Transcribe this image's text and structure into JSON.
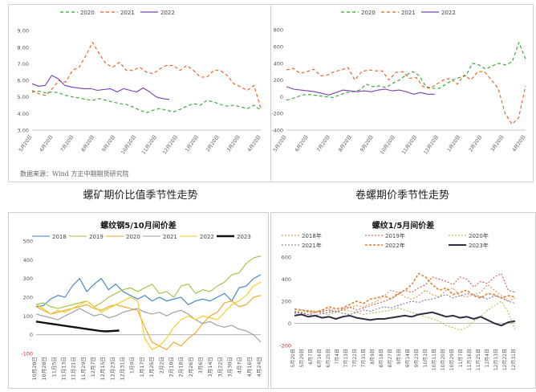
{
  "chart_data": [
    {
      "type": "line",
      "caption": "螺矿期价比值季节性走势",
      "source": "数据来源：Wind 方正中期期货研究院",
      "series": [
        {
          "name": "2020",
          "color": "#2aa62a",
          "dash": "4,3",
          "values": [
            5.3,
            5.35,
            5.25,
            5.3,
            5.25,
            5.1,
            5.0,
            4.95,
            4.85,
            4.8,
            4.9,
            4.8,
            4.7,
            4.6,
            4.55,
            4.4,
            4.2,
            4.05,
            4.2,
            4.3,
            4.2,
            4.1,
            4.25,
            4.45,
            4.6,
            4.5,
            4.8,
            4.7,
            4.55,
            4.45,
            4.5,
            4.4,
            4.3,
            4.5,
            4.2
          ]
        },
        {
          "name": "2021",
          "color": "#f05a1a",
          "dash": "4,3",
          "values": [
            5.4,
            5.2,
            5.1,
            5.5,
            6.0,
            5.9,
            6.6,
            6.8,
            7.5,
            8.3,
            7.6,
            7.0,
            6.8,
            7.1,
            6.6,
            6.6,
            6.8,
            6.5,
            6.4,
            6.7,
            6.9,
            6.9,
            6.6,
            6.9,
            6.6,
            6.2,
            6.2,
            6.6,
            6.6,
            6.3,
            5.8,
            5.6,
            5.4,
            5.7,
            4.3
          ]
        },
        {
          "name": "2022",
          "color": "#7a3fb0",
          "dash": "",
          "values": [
            5.8,
            5.65,
            5.7,
            6.3,
            6.1,
            5.7,
            5.6,
            5.55,
            5.5,
            5.5,
            5.4,
            5.45,
            5.5,
            5.3,
            5.5,
            5.4,
            5.3,
            5.55,
            5.3,
            5.0,
            4.9,
            4.85
          ]
        }
      ],
      "x_ticks": [
        "5月20日",
        "6月20日",
        "7月20日",
        "8月20日",
        "9月20日",
        "10月20日",
        "11月20日",
        "12月20日",
        "1月20日",
        "2月20日",
        "3月20日",
        "4月20日"
      ],
      "y_ticks": [
        "3.00",
        "4.00",
        "5.00",
        "6.00",
        "7.00",
        "8.00",
        "9.00"
      ],
      "ylim": [
        3,
        9.3
      ]
    },
    {
      "type": "line",
      "caption": "卷螺期价季节性走势",
      "series": [
        {
          "name": "2020",
          "color": "#2aa62a",
          "dash": "4,3",
          "values": [
            -40,
            -20,
            10,
            30,
            20,
            10,
            0,
            -10,
            20,
            50,
            60,
            80,
            150,
            120,
            130,
            110,
            160,
            200,
            260,
            300,
            250,
            120,
            100,
            100,
            150,
            200,
            230,
            250,
            400,
            380,
            330,
            370,
            400,
            380,
            420,
            650,
            450
          ]
        },
        {
          "name": "2021",
          "color": "#f05a1a",
          "dash": "4,3",
          "values": [
            320,
            340,
            280,
            300,
            330,
            250,
            260,
            300,
            320,
            350,
            200,
            300,
            320,
            310,
            310,
            200,
            290,
            300,
            220,
            230,
            120,
            100,
            150,
            200,
            220,
            150,
            260,
            200,
            300,
            300,
            200,
            100,
            -200,
            -330,
            -250,
            130
          ]
        },
        {
          "name": "2022",
          "color": "#7a3fb0",
          "dash": "",
          "values": [
            120,
            90,
            80,
            70,
            60,
            40,
            20,
            50,
            80,
            70,
            60,
            70,
            60,
            80,
            90,
            70,
            80,
            60,
            30,
            50,
            30,
            30
          ]
        }
      ],
      "x_ticks": [
        "5月20日",
        "6月20日",
        "7月20日",
        "8月20日",
        "9月20日",
        "10月20日",
        "11月20日",
        "12月20日",
        "1月20日",
        "2月20日",
        "3月20日",
        "4月20日"
      ],
      "y_ticks": [
        "-400",
        "-200",
        "0",
        "200",
        "400",
        "600",
        "800"
      ],
      "ylim": [
        -400,
        850
      ]
    },
    {
      "type": "line",
      "title": "螺纹钢5/10月间价差",
      "series": [
        {
          "name": "2018",
          "color": "#3a7fcb",
          "dash": "",
          "width": 1.1,
          "values": [
            150,
            155,
            190,
            210,
            200,
            260,
            300,
            230,
            270,
            300,
            240,
            270,
            230,
            210,
            190,
            210,
            180,
            200,
            180,
            190,
            200,
            160,
            180,
            190,
            180,
            200,
            220,
            180,
            250,
            260,
            300,
            320
          ]
        },
        {
          "name": "2019",
          "color": "#9ac33c",
          "dash": "",
          "width": 1.1,
          "values": [
            160,
            170,
            150,
            140,
            150,
            160,
            170,
            180,
            150,
            170,
            200,
            220,
            240,
            250,
            230,
            250,
            270,
            220,
            230,
            200,
            260,
            270,
            220,
            240,
            230,
            260,
            280,
            320,
            330,
            380,
            410,
            420
          ]
        },
        {
          "name": "2020",
          "color": "#f5a11c",
          "dash": "",
          "width": 1.1,
          "values": [
            150,
            130,
            110,
            120,
            130,
            140,
            150,
            160,
            140,
            130,
            150,
            160,
            150,
            140,
            130,
            40,
            -40,
            -60,
            -80,
            -40,
            -60,
            -20,
            10,
            60,
            100,
            120,
            170,
            180,
            150,
            160,
            200,
            210
          ]
        },
        {
          "name": "2021",
          "color": "#9b9b9b",
          "dash": "",
          "width": 1.1,
          "values": [
            110,
            100,
            90,
            80,
            100,
            120,
            140,
            120,
            100,
            110,
            90,
            100,
            120,
            130,
            140,
            120,
            110,
            120,
            100,
            120,
            130,
            110,
            80,
            60,
            70,
            50,
            40,
            50,
            30,
            20,
            0,
            -40
          ]
        },
        {
          "name": "2022",
          "color": "#f2cc1a",
          "dash": "",
          "width": 1.1,
          "values": [
            160,
            140,
            110,
            130,
            120,
            140,
            160,
            180,
            150,
            120,
            140,
            160,
            180,
            200,
            180,
            -20,
            -80,
            -60,
            -20,
            40,
            80,
            100,
            80,
            100,
            90,
            80,
            120,
            160,
            180,
            210,
            260,
            280
          ]
        },
        {
          "name": "2023",
          "color": "#111111",
          "dash": "",
          "width": 2.4,
          "values": [
            70,
            65,
            60,
            55,
            50,
            45,
            40,
            35,
            30,
            25,
            20,
            18,
            20,
            22
          ]
        }
      ],
      "x_ticks": [
        "10月20日",
        "10月28日",
        "11月5日",
        "11月13日",
        "11月21日",
        "11月29日",
        "12月7日",
        "12月15日",
        "12月23日",
        "12月31日",
        "1月9日",
        "1月17日",
        "1月25日",
        "2月2日",
        "2月10日",
        "2月18日",
        "2月26日",
        "3月6日",
        "3月14日",
        "3月22日",
        "3月30日",
        "4月7日",
        "4月16日",
        "4月24日"
      ],
      "y_ticks": [
        "-100",
        "0",
        "100",
        "200",
        "300",
        "400",
        "500"
      ],
      "ylim": [
        -100,
        500
      ]
    },
    {
      "type": "line",
      "title": "螺纹1/5月间价差",
      "series": [
        {
          "name": "2018年",
          "color": "#d98a3d",
          "dash": "2,2",
          "width": 1.0,
          "values": [
            110,
            100,
            120,
            110,
            100,
            130,
            110,
            120,
            140,
            160,
            150,
            180,
            200,
            250,
            300,
            280,
            240,
            220,
            250,
            300,
            260,
            240,
            300,
            320,
            250,
            240,
            260,
            280,
            350,
            300,
            250,
            200,
            230
          ]
        },
        {
          "name": "2019年",
          "color": "#e0453a",
          "dash": "2,2",
          "width": 1.0,
          "values": [
            100,
            90,
            80,
            100,
            110,
            120,
            100,
            130,
            150,
            120,
            140,
            160,
            180,
            200,
            220,
            260,
            300,
            280,
            320,
            350,
            420,
            400,
            380,
            350,
            420,
            400,
            330,
            380,
            360,
            420,
            450,
            300,
            280
          ]
        },
        {
          "name": "2020年",
          "color": "#b5b43a",
          "dash": "2,2",
          "width": 1.0,
          "values": [
            100,
            120,
            100,
            110,
            90,
            80,
            100,
            120,
            110,
            100,
            80,
            90,
            100,
            110,
            120,
            140,
            120,
            100,
            80,
            60,
            40,
            20,
            -20,
            -40,
            -60,
            -40,
            20,
            60,
            120,
            160,
            200,
            100,
            -60
          ]
        },
        {
          "name": "2021年",
          "color": "#7a64a8",
          "dash": "2,2",
          "width": 1.0,
          "values": [
            90,
            100,
            80,
            70,
            90,
            100,
            110,
            90,
            80,
            100,
            120,
            110,
            130,
            150,
            140,
            160,
            180,
            200,
            190,
            210,
            220,
            240,
            260,
            230,
            250,
            270,
            260,
            240,
            220,
            250,
            230,
            200,
            180
          ]
        },
        {
          "name": "2022年",
          "color": "#e07f2f",
          "dash": "3,2",
          "width": 1.6,
          "values": [
            130,
            120,
            110,
            100,
            120,
            150,
            130,
            140,
            170,
            200,
            180,
            220,
            230,
            250,
            220,
            270,
            300,
            350,
            450,
            420,
            350,
            300,
            320,
            260,
            280,
            300,
            250,
            230,
            270,
            260,
            230,
            250,
            240
          ]
        },
        {
          "name": "2023年",
          "color": "#2b3140",
          "dash": "",
          "width": 2.0,
          "values": [
            70,
            80,
            60,
            70,
            50,
            60,
            40,
            60,
            70,
            50,
            40,
            30,
            40,
            40,
            50,
            60,
            70,
            60,
            80,
            90,
            100,
            80,
            60,
            70,
            50,
            60,
            40,
            60,
            30,
            0,
            -20,
            10,
            20
          ]
        }
      ],
      "x_ticks": [
        "5月20日",
        "5月29日",
        "6月7日",
        "6月16日",
        "6月25日",
        "7月4日",
        "7月13日",
        "7月22日",
        "7月31日",
        "8月9日",
        "8月18日",
        "8月27日",
        "9月5日",
        "9月14日",
        "9月23日",
        "10月2日",
        "10月11日",
        "10月20日",
        "10月29日",
        "11月7日",
        "11月16日",
        "11月25日",
        "12月4日",
        "12月13日",
        "12月22日",
        "12月31日"
      ],
      "y_ticks": [
        "-200",
        "0",
        "200",
        "400",
        "600"
      ],
      "ylim": [
        -200,
        600
      ]
    }
  ]
}
